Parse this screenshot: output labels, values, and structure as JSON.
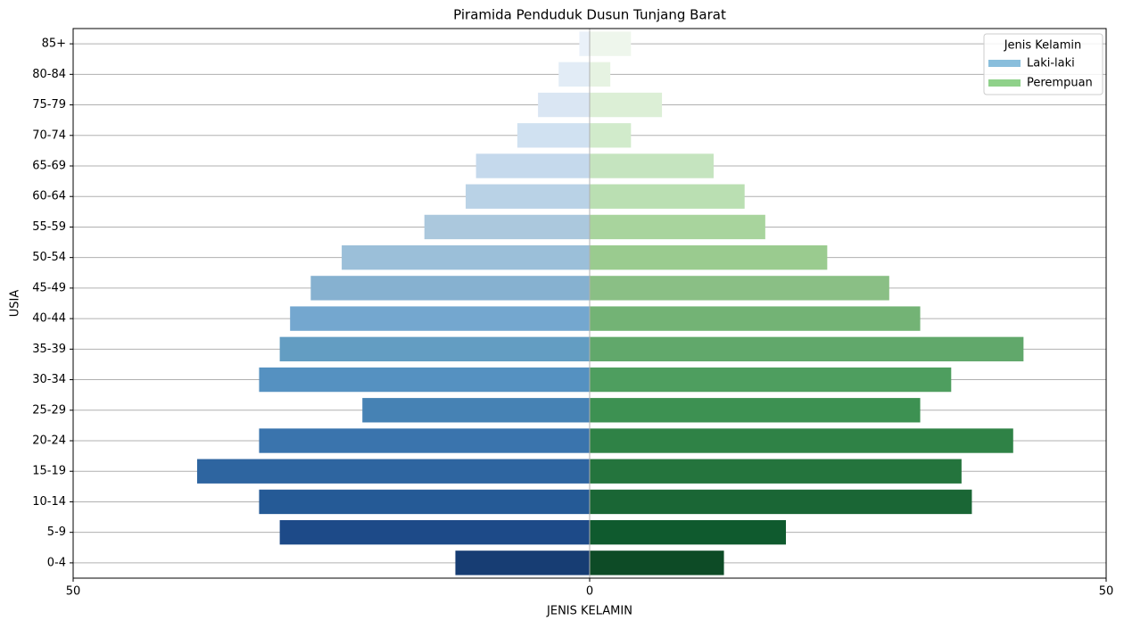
{
  "chart_data": {
    "type": "pyramid",
    "title": "Piramida Penduduk Dusun Tunjang Barat",
    "x_label": "JENIS KELAMIN",
    "y_label": "USIA",
    "categories": [
      "85+",
      "80-84",
      "75-79",
      "70-74",
      "65-69",
      "60-64",
      "55-59",
      "50-54",
      "45-49",
      "40-44",
      "35-39",
      "30-34",
      "25-29",
      "20-24",
      "15-19",
      "10-14",
      "5-9",
      "0-4"
    ],
    "series": [
      {
        "name": "Laki-laki",
        "color": "#89bedc",
        "values": [
          -1,
          -3,
          -5,
          -7,
          -11,
          -12,
          -16,
          -24,
          -27,
          -29,
          -30,
          -32,
          -22,
          -32,
          -38,
          -32,
          -30,
          -13
        ],
        "colors": [
          "#eaf1f9",
          "#e2ecf6",
          "#dae6f3",
          "#d0e1f1",
          "#c5d9ec",
          "#b9d2e6",
          "#abc8dd",
          "#9bbfd9",
          "#86b1d0",
          "#74a7cf",
          "#639dc2",
          "#5591c1",
          "#4682b4",
          "#3a74ad",
          "#2e65a0",
          "#255a96",
          "#1d4a88",
          "#173d73"
        ]
      },
      {
        "name": "Perempuan",
        "color": "#8fd18a",
        "values": [
          4,
          2,
          7,
          4,
          12,
          15,
          17,
          23,
          29,
          32,
          42,
          35,
          32,
          41,
          36,
          37,
          19,
          13
        ],
        "colors": [
          "#eef6ec",
          "#e6f3e2",
          "#dcefd6",
          "#d1ebcb",
          "#c5e4bf",
          "#badfb2",
          "#a8d49d",
          "#9acb8f",
          "#8abf85",
          "#73b375",
          "#61a86b",
          "#4e9e5f",
          "#3d9152",
          "#2f8246",
          "#24743d",
          "#1a6635",
          "#0f5a2e",
          "#0d4b26"
        ]
      }
    ],
    "xlim": [
      -50,
      50
    ],
    "xticks": [
      {
        "value": -50,
        "label": "50"
      },
      0,
      50
    ],
    "legend_title": "Jenis Kelamin",
    "legend_position": "upper right",
    "grid": true
  }
}
